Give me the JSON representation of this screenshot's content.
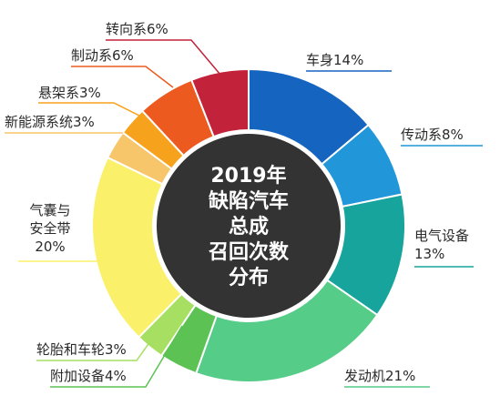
{
  "chart_data": {
    "type": "pie",
    "center_text": [
      "2019年",
      "缺陷汽车",
      "总成",
      "召回次数",
      "分布"
    ],
    "slices": [
      {
        "label": "车身",
        "value": 14,
        "color": "#1565c0"
      },
      {
        "label": "传动系",
        "value": 8,
        "color": "#2196d9"
      },
      {
        "label": "电气设备",
        "value": 13,
        "color": "#16a49c"
      },
      {
        "label": "发动机",
        "value": 21,
        "color": "#55cc88"
      },
      {
        "label": "附加设备",
        "value": 4,
        "color": "#5cc254"
      },
      {
        "label": "轮胎和车轮",
        "value": 3,
        "color": "#a6df62"
      },
      {
        "label": "气囊与安全带",
        "value": 20,
        "color": "#fbf06a"
      },
      {
        "label": "新能源系统",
        "value": 3,
        "color": "#f7c56a"
      },
      {
        "label": "悬架系",
        "value": 3,
        "color": "#f7a21d"
      },
      {
        "label": "制动系",
        "value": 6,
        "color": "#ec5a20"
      },
      {
        "label": "转向系",
        "value": 6,
        "color": "#c2223a"
      }
    ],
    "labels": [
      {
        "lines": [
          "车身14%"
        ]
      },
      {
        "lines": [
          "传动系8%"
        ]
      },
      {
        "lines": [
          "电气设备",
          "13%"
        ]
      },
      {
        "lines": [
          "发动机21%"
        ]
      },
      {
        "lines": [
          "附加设备4%"
        ]
      },
      {
        "lines": [
          "轮胎和车轮3%"
        ]
      },
      {
        "lines": [
          "气囊与",
          "安全带",
          "20%"
        ]
      },
      {
        "lines": [
          "新能源系统3%"
        ]
      },
      {
        "lines": [
          "悬架系3%"
        ]
      },
      {
        "lines": [
          "制动系6%"
        ]
      },
      {
        "lines": [
          "转向系6%"
        ]
      }
    ]
  }
}
